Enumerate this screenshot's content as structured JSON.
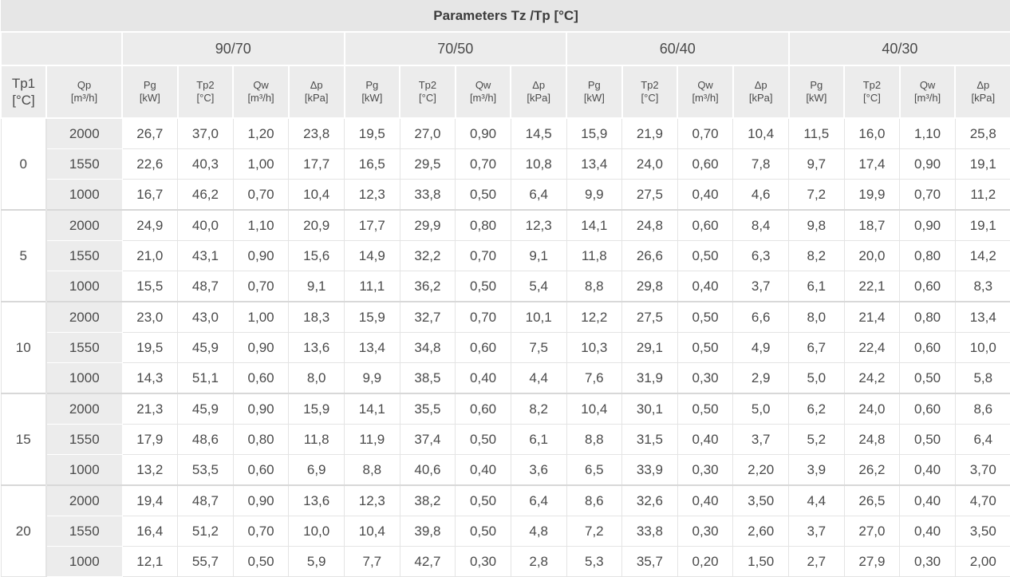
{
  "table": {
    "title": "Parameters Tz /Tp [°C]",
    "tp1_header": {
      "name": "Tp1",
      "unit": "[°C]"
    },
    "qp_header": {
      "name": "Qp",
      "unit": "[m³/h]"
    },
    "groups": [
      {
        "label": "90/70",
        "columns": [
          {
            "name": "Pg",
            "unit": "[kW]"
          },
          {
            "name": "Tp2",
            "unit": "[°C]"
          },
          {
            "name": "Qw",
            "unit": "[m³/h]"
          },
          {
            "name": "Δp",
            "unit": "[kPa]"
          }
        ]
      },
      {
        "label": "70/50",
        "columns": [
          {
            "name": "Pg",
            "unit": "[kW]"
          },
          {
            "name": "Tp2",
            "unit": "[°C]"
          },
          {
            "name": "Qw",
            "unit": "[m³/h]"
          },
          {
            "name": "Δp",
            "unit": "[kPa]"
          }
        ]
      },
      {
        "label": "60/40",
        "columns": [
          {
            "name": "Pg",
            "unit": "[kW]"
          },
          {
            "name": "Tp2",
            "unit": "[°C]"
          },
          {
            "name": "Qw",
            "unit": "[m³/h]"
          },
          {
            "name": "Δp",
            "unit": "[kPa]"
          }
        ]
      },
      {
        "label": "40/30",
        "columns": [
          {
            "name": "Pg",
            "unit": "[kW]"
          },
          {
            "name": "Tp2",
            "unit": "[°C]"
          },
          {
            "name": "Qw",
            "unit": "[m³/h]"
          },
          {
            "name": "Δp",
            "unit": "[kPa]"
          }
        ]
      }
    ],
    "sections": [
      {
        "tp1": "0",
        "rows": [
          {
            "qp": "2000",
            "values": [
              "26,7",
              "37,0",
              "1,20",
              "23,8",
              "19,5",
              "27,0",
              "0,90",
              "14,5",
              "15,9",
              "21,9",
              "0,70",
              "10,4",
              "11,5",
              "16,0",
              "1,10",
              "25,8"
            ]
          },
          {
            "qp": "1550",
            "values": [
              "22,6",
              "40,3",
              "1,00",
              "17,7",
              "16,5",
              "29,5",
              "0,70",
              "10,8",
              "13,4",
              "24,0",
              "0,60",
              "7,8",
              "9,7",
              "17,4",
              "0,90",
              "19,1"
            ]
          },
          {
            "qp": "1000",
            "values": [
              "16,7",
              "46,2",
              "0,70",
              "10,4",
              "12,3",
              "33,8",
              "0,50",
              "6,4",
              "9,9",
              "27,5",
              "0,40",
              "4,6",
              "7,2",
              "19,9",
              "0,70",
              "11,2"
            ]
          }
        ]
      },
      {
        "tp1": "5",
        "rows": [
          {
            "qp": "2000",
            "values": [
              "24,9",
              "40,0",
              "1,10",
              "20,9",
              "17,7",
              "29,9",
              "0,80",
              "12,3",
              "14,1",
              "24,8",
              "0,60",
              "8,4",
              "9,8",
              "18,7",
              "0,90",
              "19,1"
            ]
          },
          {
            "qp": "1550",
            "values": [
              "21,0",
              "43,1",
              "0,90",
              "15,6",
              "14,9",
              "32,2",
              "0,70",
              "9,1",
              "11,8",
              "26,6",
              "0,50",
              "6,3",
              "8,2",
              "20,0",
              "0,80",
              "14,2"
            ]
          },
          {
            "qp": "1000",
            "values": [
              "15,5",
              "48,7",
              "0,70",
              "9,1",
              "11,1",
              "36,2",
              "0,50",
              "5,4",
              "8,8",
              "29,8",
              "0,40",
              "3,7",
              "6,1",
              "22,1",
              "0,60",
              "8,3"
            ]
          }
        ]
      },
      {
        "tp1": "10",
        "rows": [
          {
            "qp": "2000",
            "values": [
              "23,0",
              "43,0",
              "1,00",
              "18,3",
              "15,9",
              "32,7",
              "0,70",
              "10,1",
              "12,2",
              "27,5",
              "0,50",
              "6,6",
              "8,0",
              "21,4",
              "0,80",
              "13,4"
            ]
          },
          {
            "qp": "1550",
            "values": [
              "19,5",
              "45,9",
              "0,90",
              "13,6",
              "13,4",
              "34,8",
              "0,60",
              "7,5",
              "10,3",
              "29,1",
              "0,50",
              "4,9",
              "6,7",
              "22,4",
              "0,60",
              "10,0"
            ]
          },
          {
            "qp": "1000",
            "values": [
              "14,3",
              "51,1",
              "0,60",
              "8,0",
              "9,9",
              "38,5",
              "0,40",
              "4,4",
              "7,6",
              "31,9",
              "0,30",
              "2,9",
              "5,0",
              "24,2",
              "0,50",
              "5,8"
            ]
          }
        ]
      },
      {
        "tp1": "15",
        "rows": [
          {
            "qp": "2000",
            "values": [
              "21,3",
              "45,9",
              "0,90",
              "15,9",
              "14,1",
              "35,5",
              "0,60",
              "8,2",
              "10,4",
              "30,1",
              "0,50",
              "5,0",
              "6,2",
              "24,0",
              "0,60",
              "8,6"
            ]
          },
          {
            "qp": "1550",
            "values": [
              "17,9",
              "48,6",
              "0,80",
              "11,8",
              "11,9",
              "37,4",
              "0,50",
              "6,1",
              "8,8",
              "31,5",
              "0,40",
              "3,7",
              "5,2",
              "24,8",
              "0,50",
              "6,4"
            ]
          },
          {
            "qp": "1000",
            "values": [
              "13,2",
              "53,5",
              "0,60",
              "6,9",
              "8,8",
              "40,6",
              "0,40",
              "3,6",
              "6,5",
              "33,9",
              "0,30",
              "2,20",
              "3,9",
              "26,2",
              "0,40",
              "3,70"
            ]
          }
        ]
      },
      {
        "tp1": "20",
        "rows": [
          {
            "qp": "2000",
            "values": [
              "19,4",
              "48,7",
              "0,90",
              "13,6",
              "12,3",
              "38,2",
              "0,50",
              "6,4",
              "8,6",
              "32,6",
              "0,40",
              "3,50",
              "4,4",
              "26,5",
              "0,40",
              "4,70"
            ]
          },
          {
            "qp": "1550",
            "values": [
              "16,4",
              "51,2",
              "0,70",
              "10,0",
              "10,4",
              "39,8",
              "0,50",
              "4,8",
              "7,2",
              "33,8",
              "0,30",
              "2,60",
              "3,7",
              "27,0",
              "0,40",
              "3,50"
            ]
          },
          {
            "qp": "1000",
            "values": [
              "12,1",
              "55,7",
              "0,50",
              "5,9",
              "7,7",
              "42,7",
              "0,30",
              "2,8",
              "5,3",
              "35,7",
              "0,20",
              "1,50",
              "2,7",
              "27,9",
              "0,30",
              "2,00"
            ]
          }
        ]
      }
    ]
  }
}
